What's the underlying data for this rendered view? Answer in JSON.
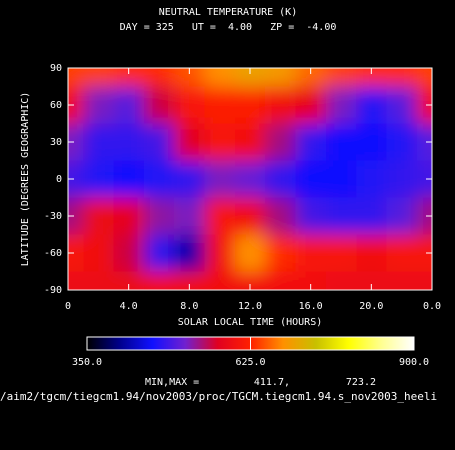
{
  "chart_data": {
    "type": "heatmap",
    "title": "NEUTRAL TEMPERATURE (K)",
    "subtitle": "DAY = 325   UT =  4.00   ZP =  -4.00",
    "x_label": "SOLAR LOCAL TIME (HOURS)",
    "y_label": "LATITUDE (DEGREES GEOGRAPHIC)",
    "x": [
      0,
      2,
      4,
      6,
      8,
      10,
      12,
      14,
      16,
      18,
      20,
      22,
      24
    ],
    "y": [
      90,
      60,
      30,
      0,
      -30,
      -60,
      -90
    ],
    "z": [
      [
        640,
        640,
        630,
        630,
        650,
        680,
        700,
        690,
        660,
        640,
        630,
        630,
        640
      ],
      [
        600,
        520,
        500,
        560,
        610,
        620,
        620,
        600,
        580,
        520,
        470,
        500,
        600
      ],
      [
        520,
        480,
        480,
        490,
        570,
        610,
        600,
        540,
        480,
        460,
        460,
        470,
        500
      ],
      [
        490,
        470,
        460,
        470,
        480,
        520,
        510,
        480,
        460,
        460,
        470,
        480,
        490
      ],
      [
        540,
        590,
        580,
        530,
        520,
        610,
        600,
        540,
        490,
        480,
        480,
        500,
        540
      ],
      [
        610,
        600,
        560,
        480,
        420,
        600,
        680,
        630,
        610,
        610,
        600,
        610,
        610
      ],
      [
        590,
        590,
        590,
        600,
        600,
        600,
        600,
        600,
        600,
        590,
        590,
        590,
        590
      ]
    ],
    "xlim": [
      0,
      24
    ],
    "xticks": [
      0,
      {
        "value": 4,
        "label": "4.0"
      },
      {
        "value": 8,
        "label": "8.0"
      },
      {
        "value": 12,
        "label": "12.0"
      },
      {
        "value": 16,
        "label": "16.0"
      },
      {
        "value": 20,
        "label": "20.0"
      },
      {
        "value": 24,
        "label": "0.0"
      }
    ],
    "ylim": [
      -90,
      90
    ],
    "yticks": [
      -90,
      -60,
      -30,
      0,
      30,
      60,
      90
    ],
    "clim": [
      350,
      900
    ],
    "cticks": [
      {
        "value": 350,
        "label": "350.0"
      },
      {
        "value": 625,
        "label": "625.0"
      },
      {
        "value": 900,
        "label": "900.0"
      }
    ],
    "colorscale": [
      "#000000",
      "#00008c",
      "#1010ff",
      "#7020d0",
      "#e00020",
      "#ff2000",
      "#ff9000",
      "#c8c000",
      "#ffff00",
      "#ffff90",
      "#ffffff"
    ],
    "min_max": {
      "label": "MIN,MAX =",
      "min": "411.7,",
      "max": "723.2"
    },
    "file_path": "/aim2/tgcm/tiegcm1.94/nov2003/proc/TGCM.tiegcm1.94.s_nov2003_heeli"
  }
}
